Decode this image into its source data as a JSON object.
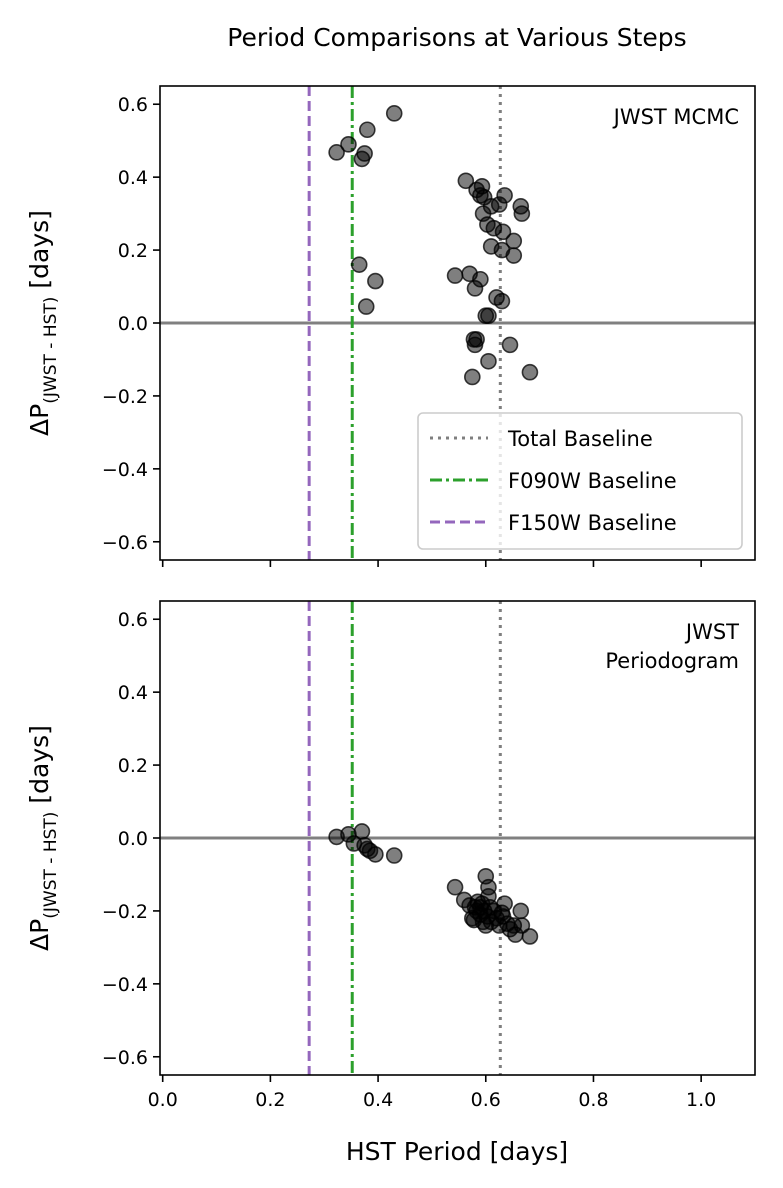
{
  "title": "Period Comparisons at Various Steps",
  "xlabel": "HST Period [days]",
  "ylabel_main": "ΔP",
  "ylabel_sub": "(JWST - HST)",
  "ylabel_unit": "[days]",
  "colors": {
    "points": "#000000",
    "zero_line": "#808080",
    "total_baseline": "#7f7f7f",
    "f090w_baseline": "#2ca02c",
    "f150w_baseline": "#9467bd"
  },
  "chart_data": [
    {
      "type": "scatter",
      "annotation": "JWST MCMC",
      "xlim": [
        -0.005,
        1.1
      ],
      "ylim": [
        -0.65,
        0.65
      ],
      "xticks": [
        0.0,
        0.2,
        0.4,
        0.6,
        0.8,
        1.0
      ],
      "xtick_labels": [
        "0.0",
        "0.2",
        "0.4",
        "0.6",
        "0.8",
        "1.0"
      ],
      "yticks": [
        -0.6,
        -0.4,
        -0.2,
        0.0,
        0.2,
        0.4,
        0.6
      ],
      "ytick_labels": [
        "−0.6",
        "−0.4",
        "−0.2",
        "0.0",
        "0.2",
        "0.4",
        "0.6"
      ],
      "show_xtick_labels": false,
      "hline": 0.0,
      "vlines": [
        {
          "name": "Total Baseline",
          "x": 0.627,
          "style": "dotted"
        },
        {
          "name": "F090W Baseline",
          "x": 0.352,
          "style": "dashdot"
        },
        {
          "name": "F150W Baseline",
          "x": 0.272,
          "style": "dashed"
        }
      ],
      "legend": {
        "location": "lower right",
        "entries": [
          "Total Baseline",
          "F090W Baseline",
          "F150W Baseline"
        ]
      },
      "points": {
        "x": [
          0.323,
          0.345,
          0.37,
          0.375,
          0.38,
          0.43,
          0.365,
          0.395,
          0.378,
          0.563,
          0.583,
          0.593,
          0.59,
          0.597,
          0.61,
          0.635,
          0.665,
          0.625,
          0.595,
          0.603,
          0.615,
          0.632,
          0.61,
          0.667,
          0.652,
          0.63,
          0.652,
          0.543,
          0.57,
          0.59,
          0.58,
          0.62,
          0.63,
          0.6,
          0.605,
          0.578,
          0.58,
          0.583,
          0.645,
          0.605,
          0.575,
          0.682
        ],
        "y": [
          0.468,
          0.49,
          0.45,
          0.465,
          0.53,
          0.575,
          0.16,
          0.115,
          0.045,
          0.39,
          0.365,
          0.375,
          0.35,
          0.345,
          0.32,
          0.35,
          0.32,
          0.325,
          0.3,
          0.27,
          0.26,
          0.25,
          0.21,
          0.3,
          0.225,
          0.2,
          0.185,
          0.13,
          0.135,
          0.12,
          0.095,
          0.07,
          0.06,
          0.02,
          0.02,
          -0.045,
          -0.06,
          -0.045,
          -0.06,
          -0.105,
          -0.148,
          -0.135
        ]
      }
    },
    {
      "type": "scatter",
      "annotation": "JWST\nPeriodogram",
      "annotation_lines": [
        "JWST",
        "Periodogram"
      ],
      "xlim": [
        -0.005,
        1.1
      ],
      "ylim": [
        -0.65,
        0.65
      ],
      "xticks": [
        0.0,
        0.2,
        0.4,
        0.6,
        0.8,
        1.0
      ],
      "xtick_labels": [
        "0.0",
        "0.2",
        "0.4",
        "0.6",
        "0.8",
        "1.0"
      ],
      "yticks": [
        -0.6,
        -0.4,
        -0.2,
        0.0,
        0.2,
        0.4,
        0.6
      ],
      "ytick_labels": [
        "−0.6",
        "−0.4",
        "−0.2",
        "0.0",
        "0.2",
        "0.4",
        "0.6"
      ],
      "show_xtick_labels": true,
      "hline": 0.0,
      "vlines": [
        {
          "name": "Total Baseline",
          "x": 0.627,
          "style": "dotted"
        },
        {
          "name": "F090W Baseline",
          "x": 0.352,
          "style": "dashdot"
        },
        {
          "name": "F150W Baseline",
          "x": 0.272,
          "style": "dashed"
        }
      ],
      "points": {
        "x": [
          0.323,
          0.345,
          0.355,
          0.37,
          0.375,
          0.38,
          0.385,
          0.395,
          0.43,
          0.543,
          0.56,
          0.57,
          0.575,
          0.58,
          0.583,
          0.585,
          0.59,
          0.59,
          0.593,
          0.595,
          0.597,
          0.6,
          0.603,
          0.605,
          0.608,
          0.61,
          0.615,
          0.62,
          0.625,
          0.63,
          0.632,
          0.635,
          0.64,
          0.645,
          0.652,
          0.655,
          0.665,
          0.667,
          0.682,
          0.6,
          0.605,
          0.578
        ],
        "y": [
          0.003,
          0.01,
          -0.015,
          0.018,
          -0.02,
          -0.03,
          -0.035,
          -0.045,
          -0.048,
          -0.135,
          -0.17,
          -0.185,
          -0.22,
          -0.19,
          -0.2,
          -0.175,
          -0.19,
          -0.21,
          -0.18,
          -0.23,
          -0.2,
          -0.24,
          -0.215,
          -0.16,
          -0.19,
          -0.23,
          -0.2,
          -0.22,
          -0.24,
          -0.205,
          -0.215,
          -0.18,
          -0.235,
          -0.25,
          -0.24,
          -0.265,
          -0.2,
          -0.24,
          -0.27,
          -0.105,
          -0.135,
          -0.225
        ]
      }
    }
  ]
}
